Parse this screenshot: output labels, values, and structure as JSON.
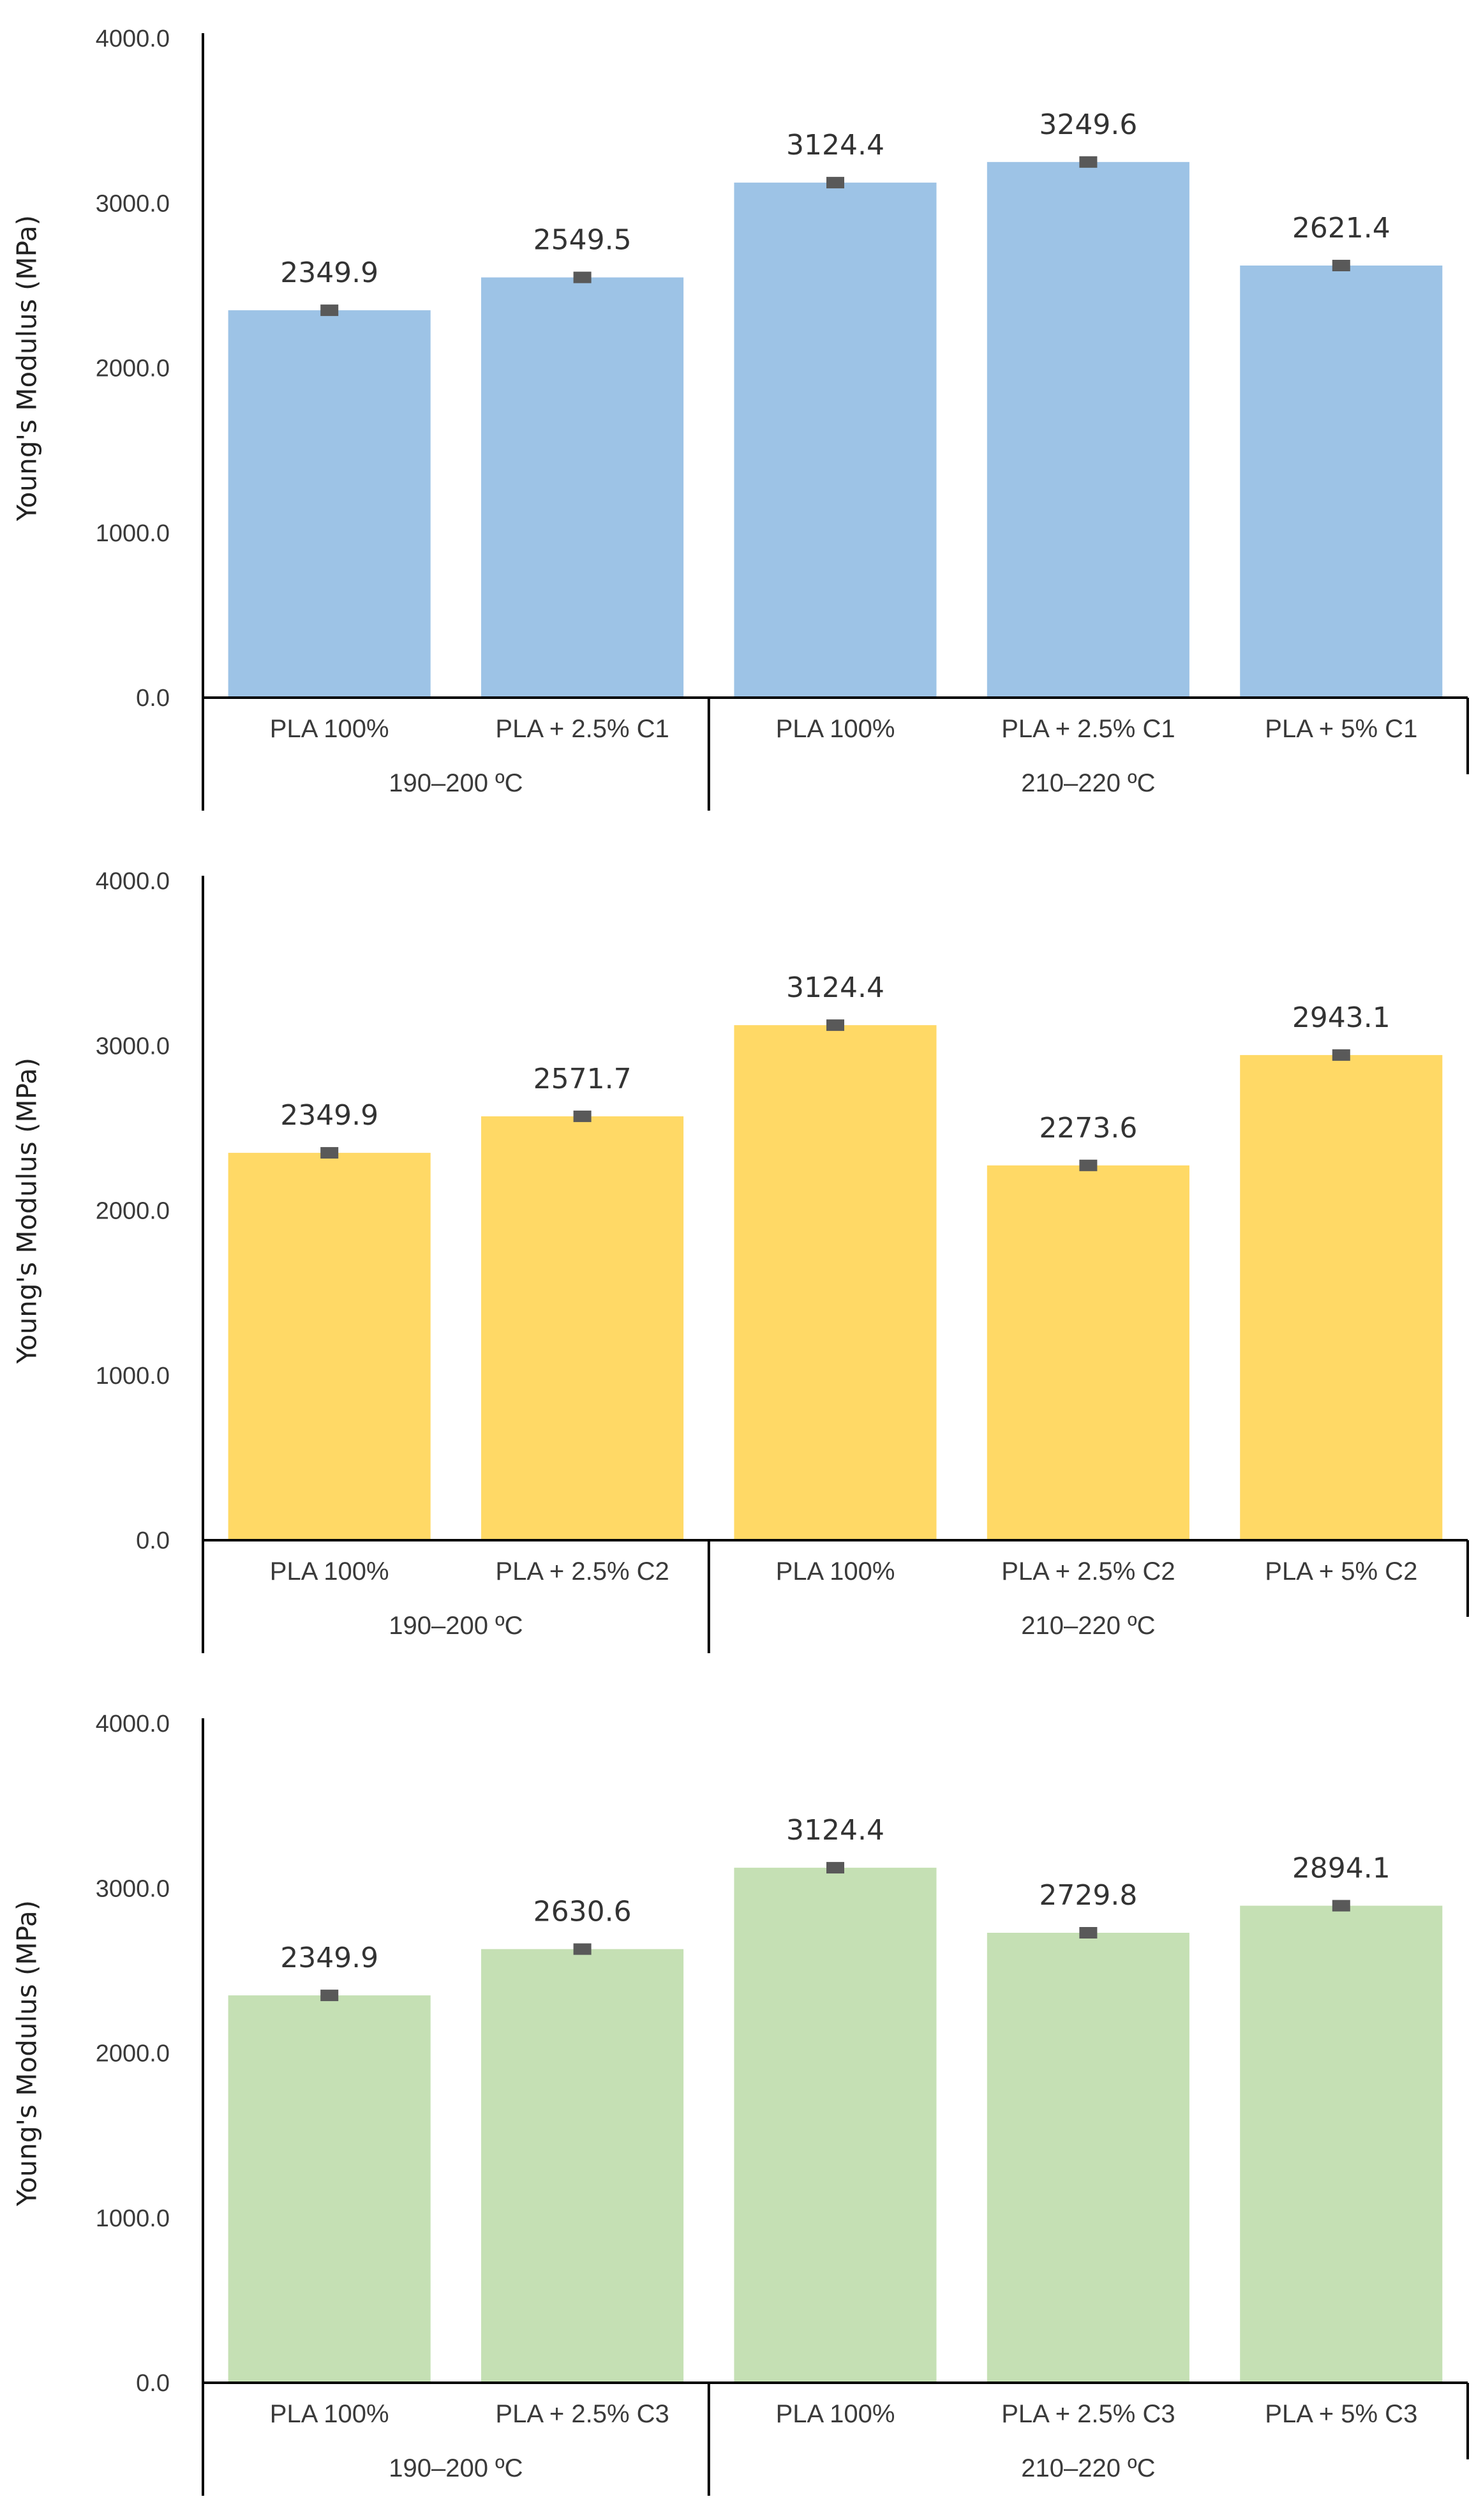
{
  "chart_data": [
    {
      "type": "bar",
      "ylabel": "Young's Modulus (MPa)",
      "ylim": [
        0,
        4000
      ],
      "yticks": [
        "0.0",
        "1000.0",
        "2000.0",
        "3000.0",
        "4000.0"
      ],
      "categories": [
        "PLA 100%",
        "PLA + 2.5% C1",
        "PLA 100%",
        "PLA + 2.5% C1",
        "PLA + 5% C1"
      ],
      "groups": [
        {
          "label": "190–200 ºC",
          "count": 2
        },
        {
          "label": "210–220 ºC",
          "count": 3
        }
      ],
      "values": [
        2349.9,
        2549.5,
        3124.4,
        3249.6,
        2621.4
      ],
      "value_labels": [
        "2349.9",
        "2549.5",
        "3124.4",
        "3249.6",
        "2621.4"
      ],
      "bar_color": "#9DC3E6",
      "error_color": "#595959"
    },
    {
      "type": "bar",
      "ylabel": "Young's Modulus (MPa)",
      "ylim": [
        0,
        4000
      ],
      "yticks": [
        "0.0",
        "1000.0",
        "2000.0",
        "3000.0",
        "4000.0"
      ],
      "categories": [
        "PLA 100%",
        "PLA + 2.5% C2",
        "PLA 100%",
        "PLA + 2.5% C2",
        "PLA + 5% C2"
      ],
      "groups": [
        {
          "label": "190–200 ºC",
          "count": 2
        },
        {
          "label": "210–220 ºC",
          "count": 3
        }
      ],
      "values": [
        2349.9,
        2571.7,
        3124.4,
        2273.6,
        2943.1
      ],
      "value_labels": [
        "2349.9",
        "2571.7",
        "3124.4",
        "2273.6",
        "2943.1"
      ],
      "bar_color": "#FFD966",
      "error_color": "#595959"
    },
    {
      "type": "bar",
      "ylabel": "Young's Modulus (MPa)",
      "ylim": [
        0,
        4000
      ],
      "yticks": [
        "0.0",
        "1000.0",
        "2000.0",
        "3000.0",
        "4000.0"
      ],
      "categories": [
        "PLA 100%",
        "PLA + 2.5% C3",
        "PLA 100%",
        "PLA + 2.5% C3",
        "PLA + 5% C3"
      ],
      "groups": [
        {
          "label": "190–200 ºC",
          "count": 2
        },
        {
          "label": "210–220 ºC",
          "count": 3
        }
      ],
      "values": [
        2349.9,
        2630.6,
        3124.4,
        2729.8,
        2894.1
      ],
      "value_labels": [
        "2349.9",
        "2630.6",
        "3124.4",
        "2729.8",
        "2894.1"
      ],
      "bar_color": "#C5E0B4",
      "error_color": "#595959"
    }
  ]
}
